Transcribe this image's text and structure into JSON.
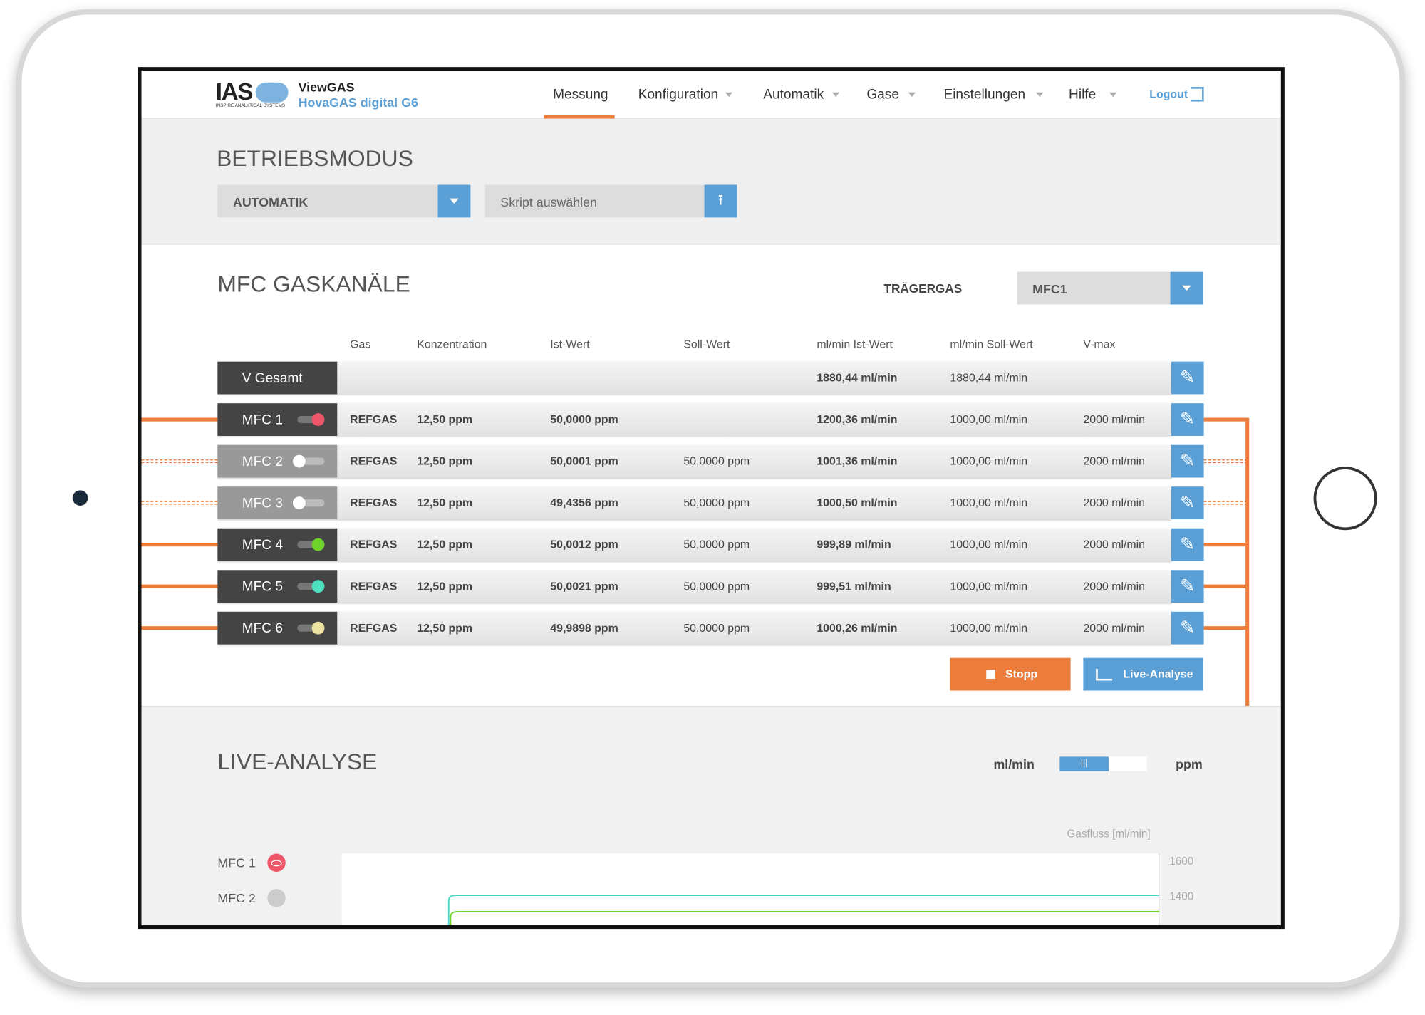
{
  "header": {
    "logo": "IAS",
    "logo_sub": "INSPIRE ANALYTICAL SYSTEMS",
    "app": "ViewGAS",
    "product": "HovaGAS digital G6"
  },
  "nav": {
    "items": [
      "Messung",
      "Konfiguration",
      "Automatik",
      "Gase",
      "Einstellungen",
      "Hilfe"
    ],
    "logout": "Logout"
  },
  "betriebsmodus": {
    "title": "BETRIEBSMODUS",
    "mode": "AUTOMATIK",
    "script": "Skript auswählen"
  },
  "mfc": {
    "title": "MFC GASKANÄLE",
    "carrier_label": "TRÄGERGAS",
    "carrier": "MFC1",
    "columns": [
      "Gas",
      "Konzentration",
      "Ist-Wert",
      "Soll-Wert",
      "ml/min Ist-Wert",
      "ml/min Soll-Wert",
      "V-max"
    ],
    "total": {
      "name": "V Gesamt",
      "ml_ist": "1880,44 ml/min",
      "ml_soll": "1880,44 ml/min"
    },
    "rows": [
      {
        "name": "MFC 1",
        "on": true,
        "color": "#f0566a",
        "gas": "REFGAS",
        "konz": "12,50 ppm",
        "ist": "50,0000 ppm",
        "soll": null,
        "ml_ist": "1200,36 ml/min",
        "ml_soll": "1000,00 ml/min",
        "vmax": "2000 ml/min"
      },
      {
        "name": "MFC 2",
        "on": false,
        "color": "#ffffff",
        "gas": "REFGAS",
        "konz": "12,50 ppm",
        "ist": "50,0001 ppm",
        "soll": "50,0000 ppm",
        "ml_ist": "1001,36 ml/min",
        "ml_soll": "1000,00 ml/min",
        "vmax": "2000 ml/min"
      },
      {
        "name": "MFC 3",
        "on": false,
        "color": "#ffffff",
        "gas": "REFGAS",
        "konz": "12,50 ppm",
        "ist": "49,4356 ppm",
        "soll": "50,0000 ppm",
        "ml_ist": "1000,50 ml/min",
        "ml_soll": "1000,00 ml/min",
        "vmax": "2000 ml/min"
      },
      {
        "name": "MFC 4",
        "on": true,
        "color": "#6fd22a",
        "gas": "REFGAS",
        "konz": "12,50 ppm",
        "ist": "50,0012 ppm",
        "soll": "50,0000 ppm",
        "ml_ist": "999,89 ml/min",
        "ml_soll": "1000,00 ml/min",
        "vmax": "2000 ml/min"
      },
      {
        "name": "MFC 5",
        "on": true,
        "color": "#4fe0c0",
        "gas": "REFGAS",
        "konz": "12,50 ppm",
        "ist": "50,0021 ppm",
        "soll": "50,0000 ppm",
        "ml_ist": "999,51 ml/min",
        "ml_soll": "1000,00 ml/min",
        "vmax": "2000 ml/min"
      },
      {
        "name": "MFC 6",
        "on": true,
        "color": "#ece1a0",
        "gas": "REFGAS",
        "konz": "12,50 ppm",
        "ist": "49,9898 ppm",
        "soll": "50,0000 ppm",
        "ml_ist": "1000,26 ml/min",
        "ml_soll": "1000,00 ml/min",
        "vmax": "2000 ml/min"
      }
    ],
    "stop": "Stopp",
    "live": "Live-Analyse"
  },
  "live": {
    "title": "LIVE-ANALYSE",
    "unit_left": "ml/min",
    "unit_right": "ppm",
    "axis_label": "Gasfluss [ml/min]",
    "tick_labels": [
      "1600",
      "1400"
    ],
    "legend": [
      "MFC 1",
      "MFC 2"
    ]
  }
}
